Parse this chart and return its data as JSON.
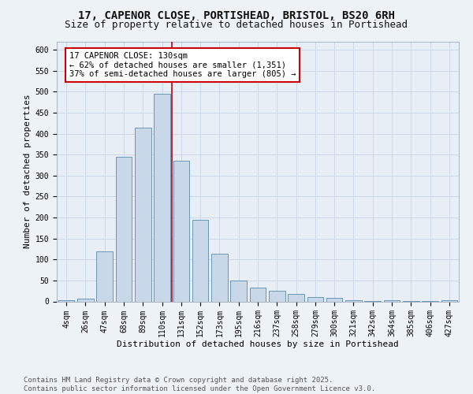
{
  "title_line1": "17, CAPENOR CLOSE, PORTISHEAD, BRISTOL, BS20 6RH",
  "title_line2": "Size of property relative to detached houses in Portishead",
  "xlabel": "Distribution of detached houses by size in Portishead",
  "ylabel": "Number of detached properties",
  "categories": [
    "4sqm",
    "26sqm",
    "47sqm",
    "68sqm",
    "89sqm",
    "110sqm",
    "131sqm",
    "152sqm",
    "173sqm",
    "195sqm",
    "216sqm",
    "237sqm",
    "258sqm",
    "279sqm",
    "300sqm",
    "321sqm",
    "342sqm",
    "364sqm",
    "385sqm",
    "406sqm",
    "427sqm"
  ],
  "values": [
    3,
    7,
    120,
    345,
    415,
    495,
    335,
    195,
    113,
    50,
    33,
    25,
    17,
    10,
    8,
    3,
    1,
    2,
    1,
    1,
    2
  ],
  "bar_color": "#c8d8e8",
  "bar_edge_color": "#5a8ab0",
  "highlight_line_color": "#cc0000",
  "annotation_text": "17 CAPENOR CLOSE: 130sqm\n← 62% of detached houses are smaller (1,351)\n37% of semi-detached houses are larger (805) →",
  "annotation_box_color": "#ffffff",
  "annotation_box_edge_color": "#cc0000",
  "ylim": [
    0,
    620
  ],
  "yticks": [
    0,
    50,
    100,
    150,
    200,
    250,
    300,
    350,
    400,
    450,
    500,
    550,
    600
  ],
  "grid_color": "#cdd8e8",
  "background_color": "#e8eef5",
  "fig_background_color": "#edf2f7",
  "footer_text": "Contains HM Land Registry data © Crown copyright and database right 2025.\nContains public sector information licensed under the Open Government Licence v3.0.",
  "title_fontsize": 10,
  "subtitle_fontsize": 9,
  "axis_label_fontsize": 8,
  "tick_fontsize": 7,
  "annotation_fontsize": 7.5,
  "footer_fontsize": 6.5
}
